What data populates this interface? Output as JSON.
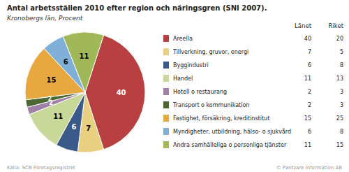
{
  "chart_data": {
    "type": "pie",
    "title": "Antal arbetsställen 2010 efter region och näringsgren (SNI 2007).",
    "subtitle": "Kronobergs län, Procent",
    "categories": [
      "Areella",
      "Tillverkning, gruvor, energi",
      "Byggindustri",
      "Handel",
      "Hotell o restaurang",
      "Transport o kommunikation",
      "Fastighet, försäkring, kreditinstitut",
      "Myndigheter, utbildning, hälso- o sjukvård",
      "Andra samhälleliga o personliga tjänster"
    ],
    "values": [
      40,
      7,
      6,
      11,
      2,
      2,
      15,
      6,
      11
    ],
    "colors": [
      "#b94040",
      "#e8d080",
      "#3a5a8a",
      "#c8d898",
      "#a080a8",
      "#4a6830",
      "#e8a840",
      "#80b0d8",
      "#a0b858"
    ],
    "data_labels": true,
    "columns": [
      {
        "name": "Länet",
        "values": [
          40,
          7,
          6,
          11,
          2,
          2,
          15,
          6,
          11
        ]
      },
      {
        "name": "Riket",
        "values": [
          20,
          5,
          8,
          13,
          3,
          3,
          25,
          8,
          15
        ]
      }
    ],
    "footer_left": "Källa: SCB Företagsregistret",
    "footer_right": "© Pantzare Information AB"
  }
}
